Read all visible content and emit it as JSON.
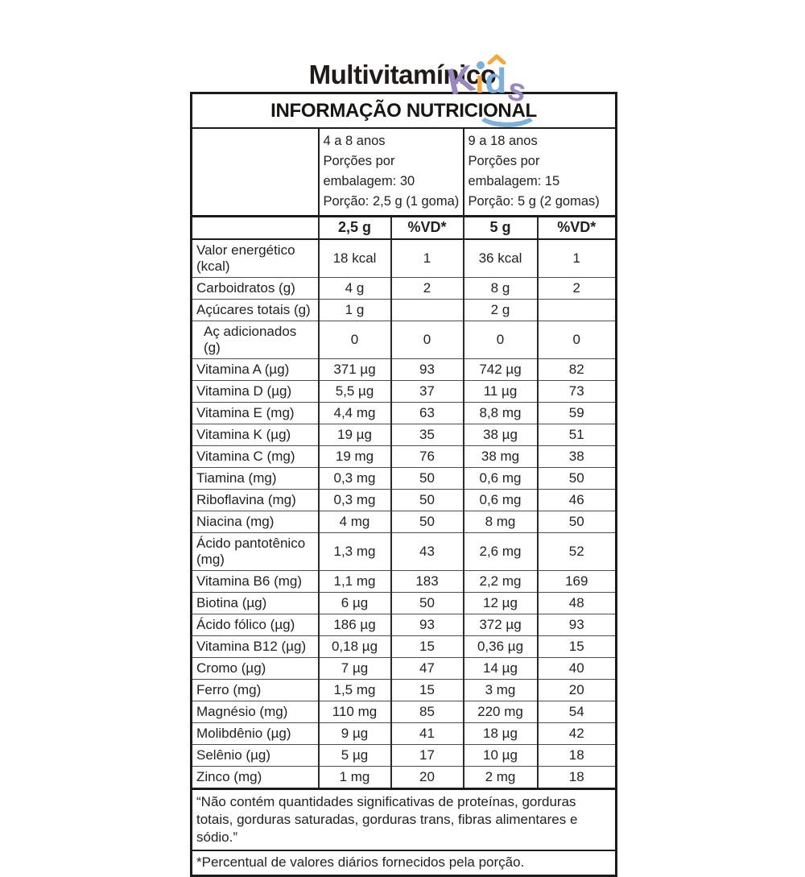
{
  "page": {
    "title": "Multivitamínico"
  },
  "logo": {
    "word": "Kids",
    "letters": {
      "k": "K",
      "i_stem": "ı",
      "d": "d",
      "s": "s"
    },
    "colors": {
      "purple": "#9a87c2",
      "orange": "#f6a83f",
      "blue": "#7fb0dd"
    }
  },
  "table": {
    "header": "INFORMAÇÃO NUTRICIONAL",
    "age_groups": [
      {
        "age": "4 a 8 anos",
        "servings_per_pack": "Porções por embalagem: 30",
        "portion": "Porção: 2,5 g (1 goma)"
      },
      {
        "age": "9 a 18 anos",
        "servings_per_pack": "Porções por embalagem: 15",
        "portion": "Porção: 5 g (2 gomas)"
      }
    ],
    "column_headers": [
      "",
      "2,5 g",
      "%VD*",
      "5 g",
      "%VD*"
    ],
    "rows": [
      {
        "label": "Valor energético (kcal)",
        "amount1": "18 kcal",
        "dv1": "1",
        "amount2": "36 kcal",
        "dv2": "1",
        "indent": false
      },
      {
        "label": "Carboidratos (g)",
        "amount1": "4 g",
        "dv1": "2",
        "amount2": "8 g",
        "dv2": "2",
        "indent": false
      },
      {
        "label": "Açúcares totais (g)",
        "amount1": "1 g",
        "dv1": "",
        "amount2": "2 g",
        "dv2": "",
        "indent": false
      },
      {
        "label": "Aç adicionados (g)",
        "amount1": "0",
        "dv1": "0",
        "amount2": "0",
        "dv2": "0",
        "indent": true
      },
      {
        "label": "Vitamina A (µg)",
        "amount1": "371 µg",
        "dv1": "93",
        "amount2": "742 µg",
        "dv2": "82",
        "indent": false
      },
      {
        "label": "Vitamina D (µg)",
        "amount1": "5,5 µg",
        "dv1": "37",
        "amount2": "11 µg",
        "dv2": "73",
        "indent": false
      },
      {
        "label": "Vitamina E (mg)",
        "amount1": "4,4 mg",
        "dv1": "63",
        "amount2": "8,8 mg",
        "dv2": "59",
        "indent": false
      },
      {
        "label": "Vitamina K (µg)",
        "amount1": "19 µg",
        "dv1": "35",
        "amount2": "38 µg",
        "dv2": "51",
        "indent": false
      },
      {
        "label": "Vitamina C (mg)",
        "amount1": "19 mg",
        "dv1": "76",
        "amount2": "38 mg",
        "dv2": "38",
        "indent": false
      },
      {
        "label": "Tiamina (mg)",
        "amount1": "0,3 mg",
        "dv1": "50",
        "amount2": "0,6 mg",
        "dv2": "50",
        "indent": false
      },
      {
        "label": "Riboflavina (mg)",
        "amount1": "0,3 mg",
        "dv1": "50",
        "amount2": "0,6 mg",
        "dv2": "46",
        "indent": false
      },
      {
        "label": "Niacina (mg)",
        "amount1": "4 mg",
        "dv1": "50",
        "amount2": "8 mg",
        "dv2": "50",
        "indent": false
      },
      {
        "label": "Ácido pantotênico (mg)",
        "amount1": "1,3 mg",
        "dv1": "43",
        "amount2": "2,6 mg",
        "dv2": "52",
        "indent": false
      },
      {
        "label": "Vitamina B6 (mg)",
        "amount1": "1,1 mg",
        "dv1": "183",
        "amount2": "2,2 mg",
        "dv2": "169",
        "indent": false
      },
      {
        "label": "Biotina (µg)",
        "amount1": "6 µg",
        "dv1": "50",
        "amount2": "12 µg",
        "dv2": "48",
        "indent": false
      },
      {
        "label": "Ácido fólico (µg)",
        "amount1": "186 µg",
        "dv1": "93",
        "amount2": "372 µg",
        "dv2": "93",
        "indent": false
      },
      {
        "label": "Vitamina B12 (µg)",
        "amount1": "0,18 µg",
        "dv1": "15",
        "amount2": "0,36 µg",
        "dv2": "15",
        "indent": false
      },
      {
        "label": "Cromo (µg)",
        "amount1": "7 µg",
        "dv1": "47",
        "amount2": "14 µg",
        "dv2": "40",
        "indent": false
      },
      {
        "label": "Ferro (mg)",
        "amount1": "1,5 mg",
        "dv1": "15",
        "amount2": "3 mg",
        "dv2": "20",
        "indent": false
      },
      {
        "label": "Magnésio (mg)",
        "amount1": "110 mg",
        "dv1": "85",
        "amount2": "220 mg",
        "dv2": "54",
        "indent": false
      },
      {
        "label": "Molibdênio (µg)",
        "amount1": "9 µg",
        "dv1": "41",
        "amount2": "18 µg",
        "dv2": "42",
        "indent": false
      },
      {
        "label": "Selênio (µg)",
        "amount1": "5 µg",
        "dv1": "17",
        "amount2": "10 µg",
        "dv2": "18",
        "indent": false
      },
      {
        "label": "Zinco (mg)",
        "amount1": "1 mg",
        "dv1": "20",
        "amount2": "2 mg",
        "dv2": "18",
        "indent": false
      }
    ],
    "notes": [
      "“Não contém quantidades significativas de proteínas, gorduras totais, gorduras saturadas, gorduras trans, fibras alimentares e sódio.”",
      "*Percentual de valores diários fornecidos pela porção."
    ]
  }
}
